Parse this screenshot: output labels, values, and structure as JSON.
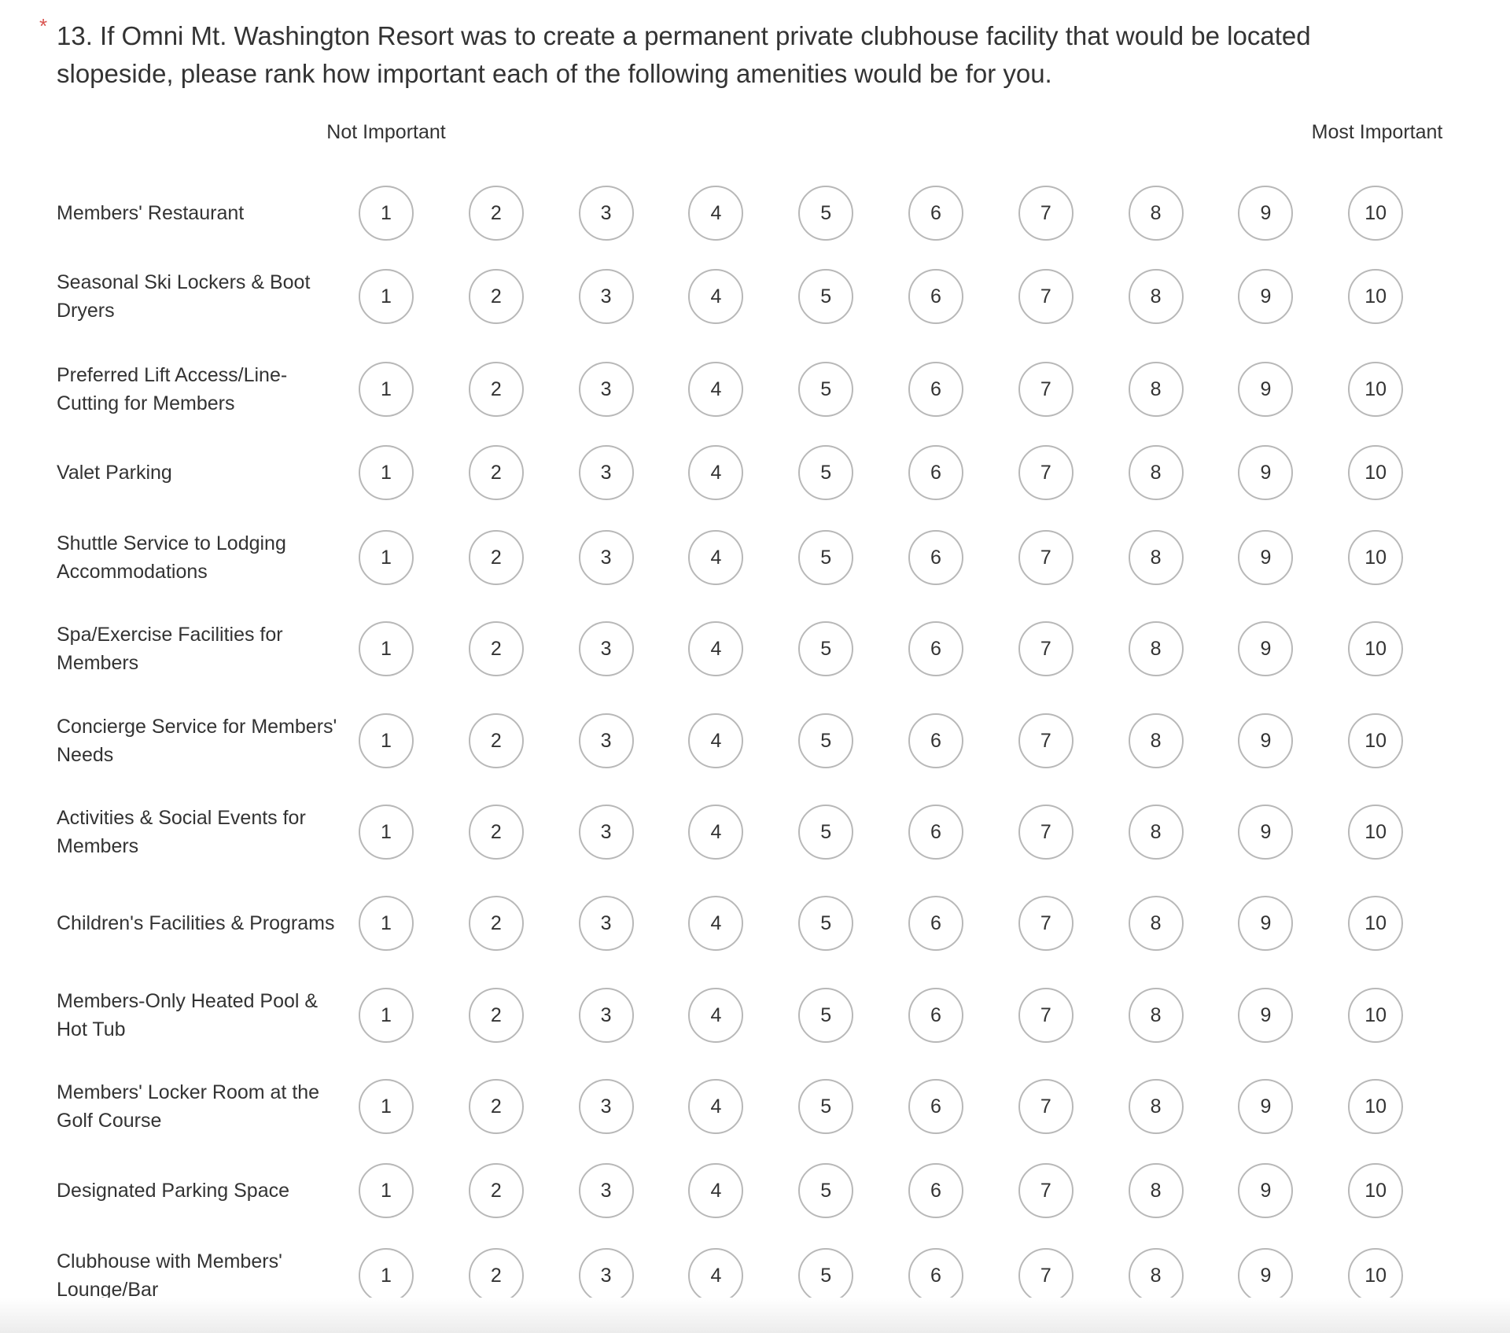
{
  "question": {
    "required_marker": "*",
    "title": "13. If Omni Mt. Washington Resort was to create a permanent private clubhouse facility that would be located slopeside, please rank how important each of the following amenities would be for you."
  },
  "scale": {
    "low_label": "Not Important",
    "high_label": "Most Important",
    "options": [
      "1",
      "2",
      "3",
      "4",
      "5",
      "6",
      "7",
      "8",
      "9",
      "10"
    ]
  },
  "rows": [
    "Members' Restaurant",
    "Seasonal Ski Lockers & Boot Dryers",
    "Preferred Lift Access/Line-Cutting for Members",
    "Valet Parking",
    "Shuttle Service to Lodging Accommodations",
    "Spa/Exercise Facilities for Members",
    "Concierge Service for Members' Needs",
    "Activities & Social Events for Members",
    "Children's Facilities & Programs",
    "Members-Only Heated Pool & Hot Tub",
    "Members' Locker Room at the Golf Course",
    "Designated Parking Space",
    "Clubhouse with Members' Lounge/Bar"
  ],
  "colors": {
    "required": "#d9534f",
    "text": "#333333",
    "circle_border": "#b8b8b8"
  }
}
